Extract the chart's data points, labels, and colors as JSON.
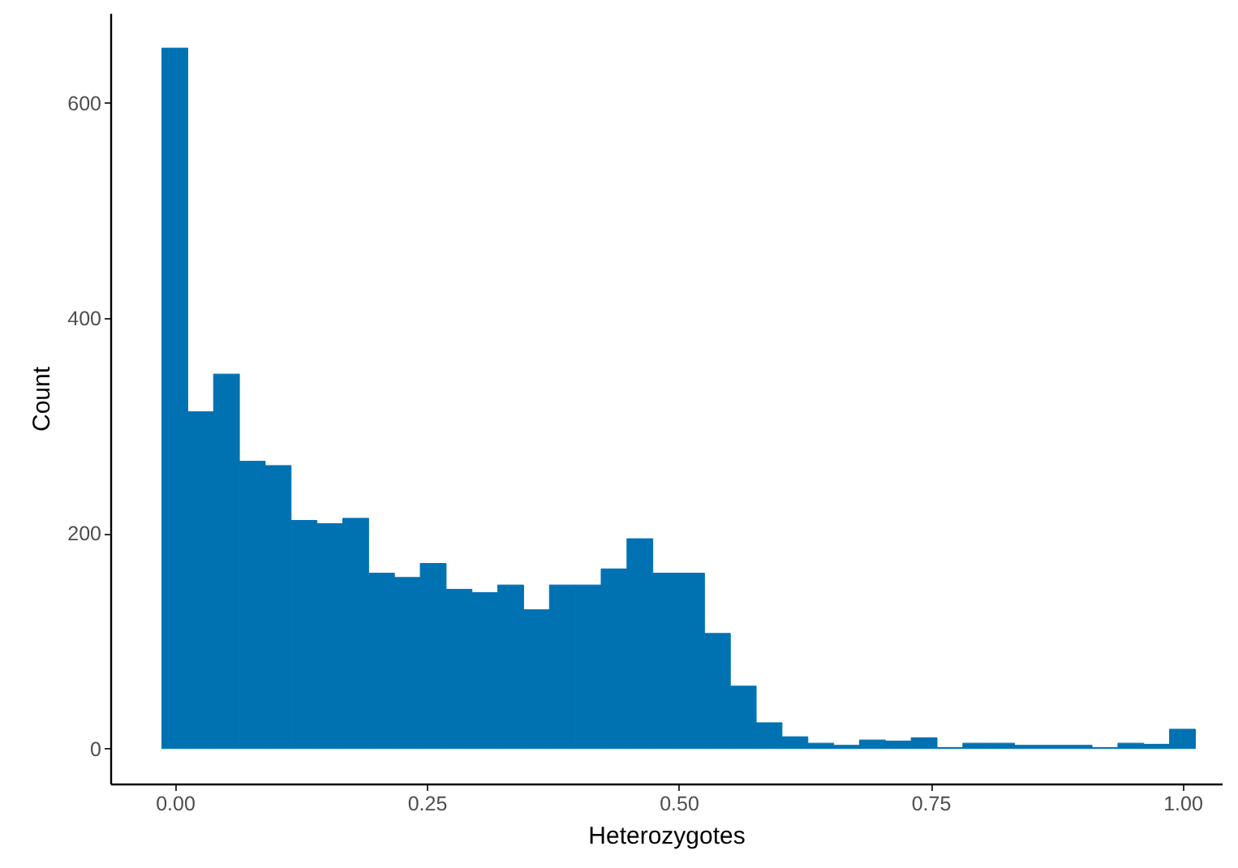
{
  "chart_data": {
    "type": "histogram",
    "xlabel": "Heterozygotes",
    "ylabel": "Count",
    "color": "#0072b2",
    "bins": [
      -0.01282,
      0.01282,
      0.03846,
      0.0641,
      0.08974,
      0.11538,
      0.14103,
      0.16667,
      0.19231,
      0.21795,
      0.24359,
      0.26923,
      0.29487,
      0.32051,
      0.34615,
      0.37179,
      0.39744,
      0.42308,
      0.44872,
      0.47436,
      0.5,
      0.52564,
      0.55128,
      0.57692,
      0.60256,
      0.62821,
      0.65385,
      0.67949,
      0.70513,
      0.73077,
      0.75641,
      0.78205,
      0.80769,
      0.83333,
      0.85897,
      0.88462,
      0.91026,
      0.9359,
      0.96154,
      0.98718,
      1.01282
    ],
    "values": [
      651,
      313,
      348,
      267,
      263,
      212,
      209,
      214,
      163,
      159,
      172,
      148,
      145,
      152,
      129,
      152,
      152,
      167,
      195,
      163,
      163,
      107,
      58,
      24,
      11,
      5,
      3,
      8,
      7,
      10,
      1,
      5,
      5,
      3,
      3,
      3,
      1,
      5,
      4,
      18
    ],
    "xlim": [
      -0.064,
      1.039
    ],
    "ylim": [
      -32.6,
      683.6
    ],
    "xticks": [
      {
        "value": 0,
        "label": "0.00"
      },
      {
        "value": 0.25,
        "label": "0.25"
      },
      {
        "value": 0.5,
        "label": "0.50"
      },
      {
        "value": 0.75,
        "label": "0.75"
      },
      {
        "value": 1,
        "label": "1.00"
      }
    ],
    "yticks": [
      0,
      200,
      400,
      600
    ],
    "grid": false
  }
}
